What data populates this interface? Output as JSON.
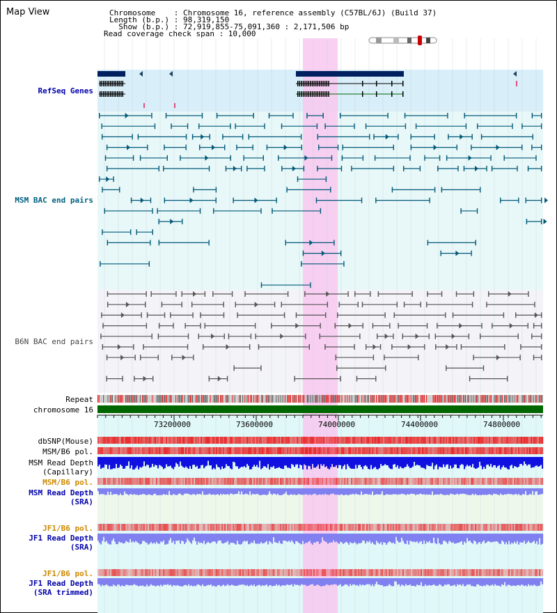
{
  "header": {
    "view_title": "Map View",
    "chromosome_line": "Chromosome    : Chromosome 16, reference assembly (C57BL/6J) (Build 37)",
    "length_line": "Length (b.p.) : 98,319,150",
    "show_line": "  Show (b.p.) : 72,919,855-75,091,360 : 2,171,506 bp",
    "coverage_line": "Read coverage check span : 10,000"
  },
  "tracks": {
    "refseq": "RefSeq Genes",
    "msm_bac": "MSM BAC end pairs",
    "b6n_bac": "B6N BAC end pairs",
    "repeat": "Repeat",
    "chromosome": "chromosome 16",
    "dbsnp": "dbSNP(Mouse)",
    "msm_b6_pol_1": "MSM/B6 pol.",
    "msm_read_depth_cap": "MSM Read Depth\n(Capillary)",
    "msm_b6_pol_2": "MSM/B6 pol.",
    "msm_read_depth_sra": "MSM Read Depth\n(SRA)",
    "jf1_b6_pol_1": "JF1/B6 pol.",
    "jf1_read_depth_sra": "JF1 Read Depth\n(SRA)",
    "jf1_b6_pol_2": "JF1/B6 pol.",
    "jf1_read_depth_trimmed": "JF1 Read Depth\n(SRA trimmed)"
  },
  "axis": {
    "ticks": [
      "73200000",
      "73600000",
      "74000000",
      "74400000",
      "74800000"
    ]
  },
  "colors": {
    "highlight": "#f8c8f0",
    "refseq_bg": "#d8eef8",
    "msm_bg": "#e8f8f8",
    "b6n_bg": "#f4f4f8",
    "msm_line": "#005878",
    "b6n_line": "#555555",
    "chrom_bar": "#006600",
    "snp_red": "#e83030",
    "depth_blue": "#1010e0",
    "depth_light_blue": "#8080f0"
  }
}
